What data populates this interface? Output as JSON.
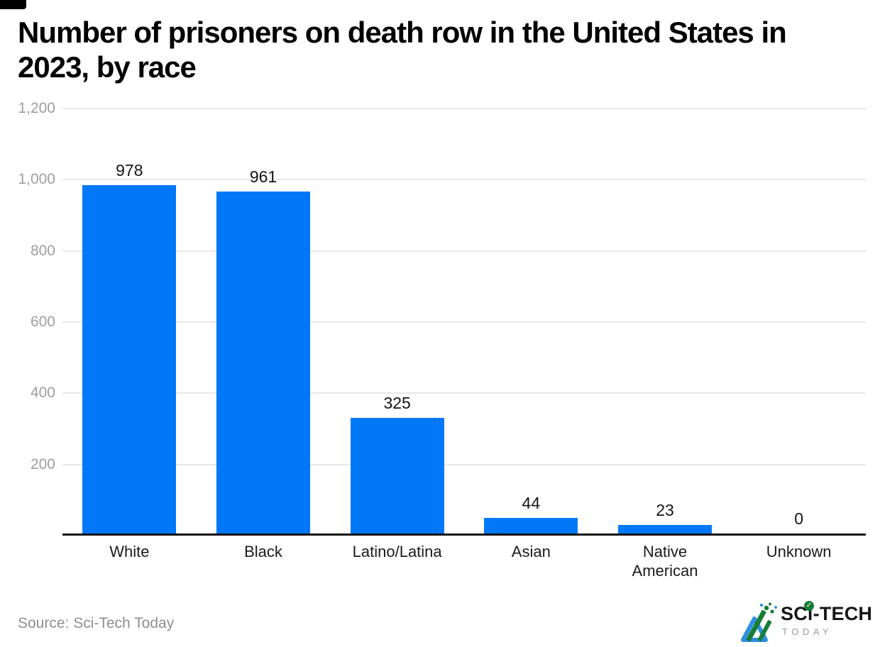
{
  "title": {
    "line1": "Number of prisoners on death row in the United States in",
    "line2": "2023, by race"
  },
  "source": {
    "text": "Source: Sci-Tech Today"
  },
  "logo": {
    "name": "SCi-TECH",
    "tagline": "TODAY",
    "check_icon": "✓"
  },
  "colors": {
    "bar": "#0078f8",
    "gridline": "#e7e7e7",
    "axis_line": "#111111",
    "ytick_label": "#9e9e9e",
    "value_label": "#141414",
    "category_label": "#1b1b1b",
    "source_text": "#8e8e8e",
    "logo_green": "#177d36",
    "logo_blue": "#2f8fe5"
  },
  "chart_data": {
    "type": "bar",
    "title": "Number of prisoners on death row in the United States in 2023, by race",
    "categories": [
      "White",
      "Black",
      "Latino/Latina",
      "Asian",
      "Native American",
      "Unknown"
    ],
    "values": [
      978,
      961,
      325,
      44,
      23,
      0
    ],
    "value_labels": [
      "978",
      "961",
      "325",
      "44",
      "23",
      "0"
    ],
    "xlabel": "",
    "ylabel": "",
    "ylim": [
      0,
      1200
    ],
    "yticks": [
      200,
      400,
      600,
      800,
      1000,
      1200
    ],
    "ytick_labels": [
      "200",
      "400",
      "600",
      "800",
      "1,000",
      "1,200"
    ],
    "grid": "horizontal",
    "legend": "none",
    "bar_color": "#0078f8"
  }
}
